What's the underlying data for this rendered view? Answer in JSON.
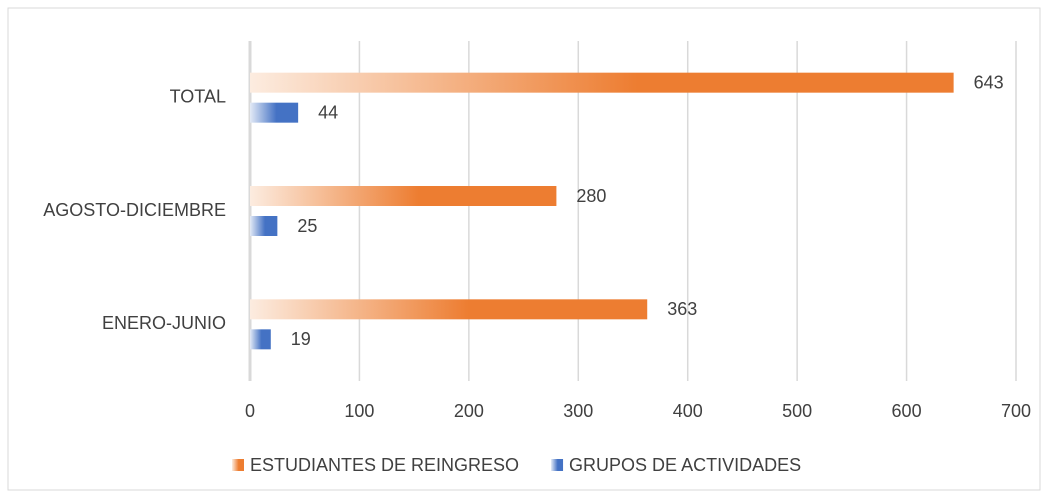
{
  "chart_data": {
    "type": "barh",
    "categories": [
      "TOTAL",
      "AGOSTO-DICIEMBRE",
      "ENERO-JUNIO"
    ],
    "series": [
      {
        "name": "ESTUDIANTES DE REINGRESO",
        "color": "#ed7d31",
        "values": [
          643,
          280,
          363
        ]
      },
      {
        "name": "GRUPOS DE ACTIVIDADES",
        "color": "#4472c4",
        "values": [
          44,
          25,
          19
        ]
      }
    ],
    "xlim": [
      0,
      700
    ],
    "xticks": [
      0,
      100,
      200,
      300,
      400,
      500,
      600,
      700
    ],
    "grid": true,
    "legend": "bottom"
  }
}
